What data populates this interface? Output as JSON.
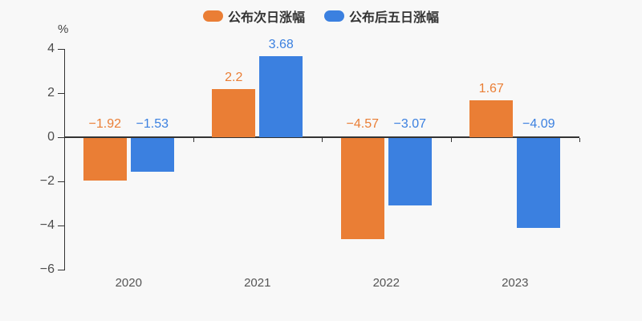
{
  "chart_data": {
    "type": "bar",
    "title": "",
    "categories": [
      "2020",
      "2021",
      "2022",
      "2023"
    ],
    "series": [
      {
        "name": "公布次日涨幅",
        "color": "#ea7e35",
        "values": [
          -1.92,
          2.2,
          -4.57,
          1.67
        ]
      },
      {
        "name": "公布后五日涨幅",
        "color": "#3b80e0",
        "values": [
          -1.53,
          3.68,
          -3.07,
          -4.09
        ]
      }
    ],
    "xlabel": "",
    "ylabel": "%",
    "ylim": [
      -6,
      4
    ],
    "yticks": [
      4,
      2,
      0,
      -2,
      -4,
      -6
    ],
    "legend_position": "top",
    "grid": false,
    "bar_value_labels": [
      "−1.92",
      "−1.53",
      "2.2",
      "3.68",
      "−4.57",
      "−3.07",
      "1.67",
      "−4.09"
    ]
  },
  "colors": {
    "background": "#f8f8f8",
    "axis": "#333333",
    "tick_label": "#4d4d4d",
    "category_label": "#555555",
    "legend_text": "#333333"
  }
}
